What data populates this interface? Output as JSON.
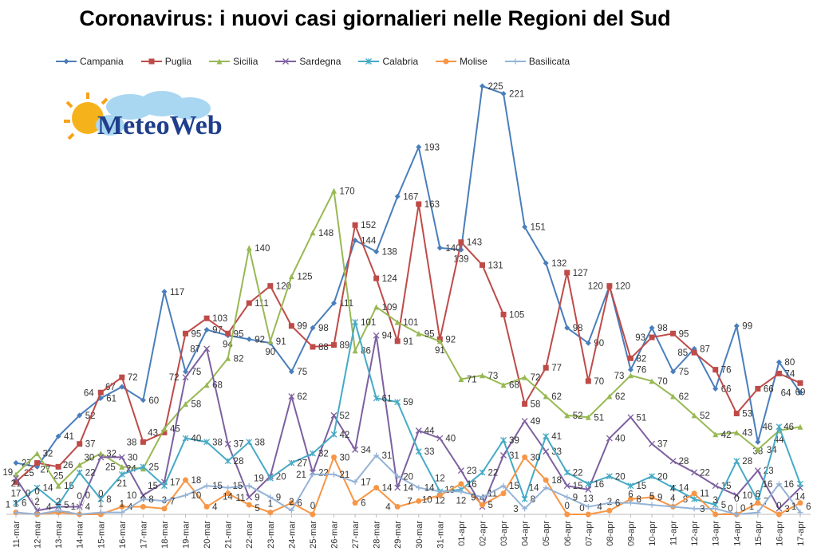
{
  "chart_data": {
    "type": "line",
    "title": "Coronavirus: i nuovi casi giornalieri nelle Regioni del Sud",
    "xlabel": "",
    "ylabel": "",
    "ylim": [
      0,
      225
    ],
    "grid": false,
    "legend_position": "top",
    "categories": [
      "11-mar",
      "12-mar",
      "13-mar",
      "14-mar",
      "15-mar",
      "16-mar",
      "17-mar",
      "18-mar",
      "19-mar",
      "20-mar",
      "21-mar",
      "22-mar",
      "23-mar",
      "24-mar",
      "25-mar",
      "26-mar",
      "27-mar",
      "28-mar",
      "29-mar",
      "30-mar",
      "31-mar",
      "01-apr",
      "02-apr",
      "03-apr",
      "04-apr",
      "05-apr",
      "06-apr",
      "07-apr",
      "08-apr",
      "09-apr",
      "10-apr",
      "11-apr",
      "12-apr",
      "13-apr",
      "14-apr",
      "15-apr",
      "16-apr",
      "17-apr"
    ],
    "series": [
      {
        "name": "Campania",
        "color": "#4a7ebb",
        "marker": "diamond",
        "values": [
          27,
          25,
          41,
          52,
          61,
          67,
          60,
          117,
          75,
          97,
          94,
          92,
          90,
          75,
          98,
          111,
          144,
          138,
          167,
          193,
          140,
          139,
          225,
          221,
          151,
          132,
          98,
          90,
          120,
          76,
          98,
          75,
          87,
          66,
          99,
          38,
          80,
          64
        ]
      },
      {
        "name": "Puglia",
        "color": "#be4b48",
        "marker": "square",
        "values": [
          17,
          27,
          25,
          37,
          64,
          72,
          38,
          43,
          95,
          103,
          95,
          111,
          120,
          99,
          88,
          89,
          152,
          124,
          91,
          163,
          92,
          143,
          131,
          105,
          58,
          77,
          127,
          70,
          120,
          82,
          93,
          95,
          85,
          76,
          53,
          66,
          74,
          69
        ]
      },
      {
        "name": "Sicilia",
        "color": "#98b954",
        "marker": "triangle",
        "values": [
          21,
          32,
          15,
          26,
          32,
          25,
          24,
          45,
          58,
          68,
          82,
          140,
          91,
          125,
          148,
          170,
          86,
          109,
          101,
          95,
          91,
          71,
          73,
          68,
          72,
          62,
          52,
          51,
          62,
          73,
          70,
          62,
          52,
          42,
          43,
          34,
          44,
          46
        ]
      },
      {
        "name": "Sardegna",
        "color": "#7d60a0",
        "marker": "x",
        "values": [
          19,
          2,
          4,
          4,
          30,
          30,
          10,
          17,
          72,
          87,
          37,
          9,
          20,
          62,
          22,
          52,
          34,
          94,
          14,
          44,
          40,
          23,
          4,
          31,
          49,
          33,
          15,
          13,
          40,
          51,
          37,
          28,
          22,
          15,
          10,
          23,
          3,
          14
        ]
      },
      {
        "name": "Calabria",
        "color": "#46aac5",
        "marker": "star",
        "values": [
          6,
          14,
          5,
          22,
          8,
          21,
          25,
          15,
          40,
          38,
          28,
          38,
          19,
          27,
          32,
          42,
          101,
          61,
          59,
          33,
          12,
          13,
          22,
          39,
          8,
          41,
          22,
          16,
          20,
          15,
          20,
          14,
          8,
          5,
          28,
          7,
          46,
          16
        ]
      },
      {
        "name": "Molise",
        "color": "#f79646",
        "marker": "circle",
        "values": [
          1,
          0,
          1,
          0,
          0,
          4,
          4,
          3,
          18,
          4,
          11,
          5,
          1,
          6,
          0,
          30,
          6,
          14,
          4,
          7,
          10,
          16,
          5,
          11,
          30,
          18,
          0,
          0,
          2,
          8,
          9,
          4,
          11,
          0,
          0,
          6,
          0,
          6
        ]
      },
      {
        "name": "Basilicata",
        "color": "#95b3d7",
        "marker": "plus",
        "values": [
          1,
          0,
          2,
          0,
          1,
          1,
          8,
          7,
          10,
          15,
          14,
          15,
          9,
          2,
          21,
          21,
          17,
          31,
          20,
          14,
          12,
          12,
          9,
          15,
          3,
          14,
          9,
          4,
          6,
          6,
          5,
          4,
          3,
          3,
          0,
          1,
          16,
          1
        ]
      }
    ]
  },
  "logo": {
    "text": "MeteoWeb"
  }
}
